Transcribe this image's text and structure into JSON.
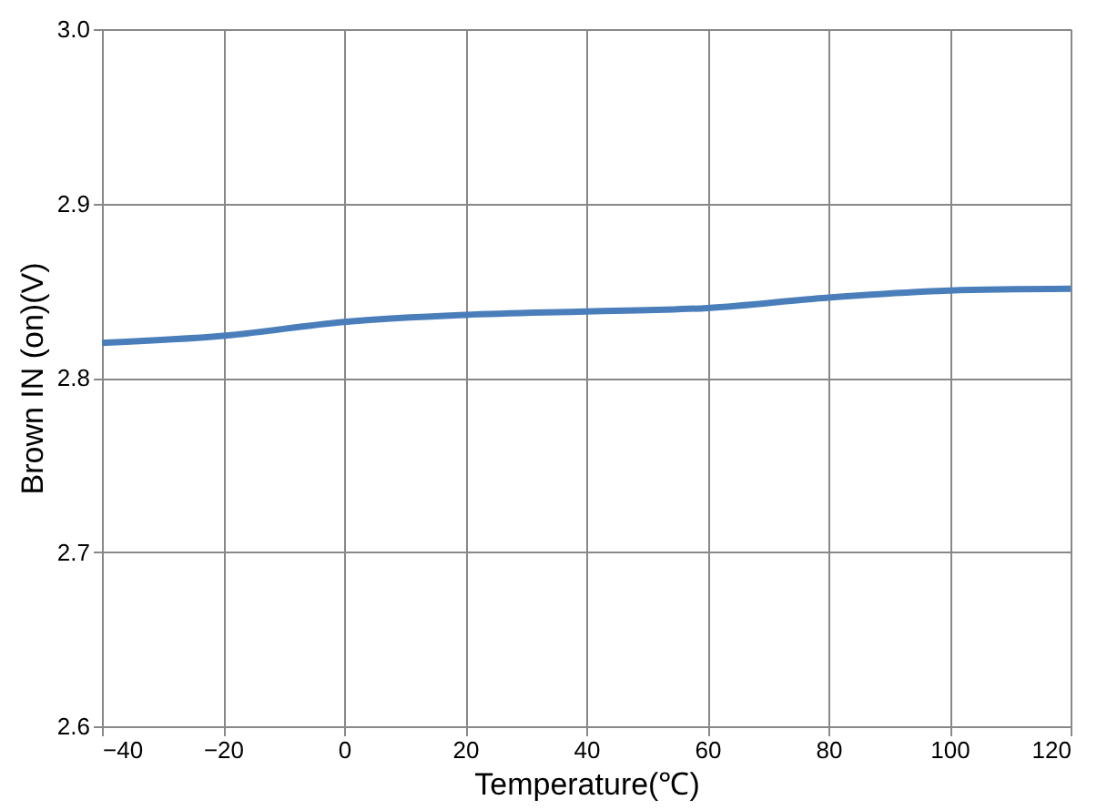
{
  "chart_data": {
    "type": "line",
    "xlabel": "Temperature(℃)",
    "ylabel": "Brown IN (on)(V)",
    "x": [
      -40,
      -20,
      0,
      20,
      40,
      60,
      80,
      100,
      120
    ],
    "series": [
      {
        "color": "#4a7ebb",
        "values": [
          2.82,
          2.824,
          2.832,
          2.836,
          2.838,
          2.84,
          2.846,
          2.85,
          2.851
        ]
      }
    ],
    "xlim": [
      -40,
      120
    ],
    "xticks": [
      -40,
      -20,
      0,
      20,
      40,
      60,
      80,
      100,
      120
    ],
    "ylim": [
      2.6,
      3.0
    ],
    "yticks": [
      {
        "value": 2.6,
        "label": "2.6"
      },
      {
        "value": 2.7,
        "label": "2.7"
      },
      {
        "value": 2.8,
        "label": "2.8"
      },
      {
        "value": 2.9,
        "label": "2.9"
      },
      {
        "value": 3.0,
        "label": "3.0"
      }
    ],
    "grid": true,
    "marker": "none",
    "line_style": "solid"
  }
}
